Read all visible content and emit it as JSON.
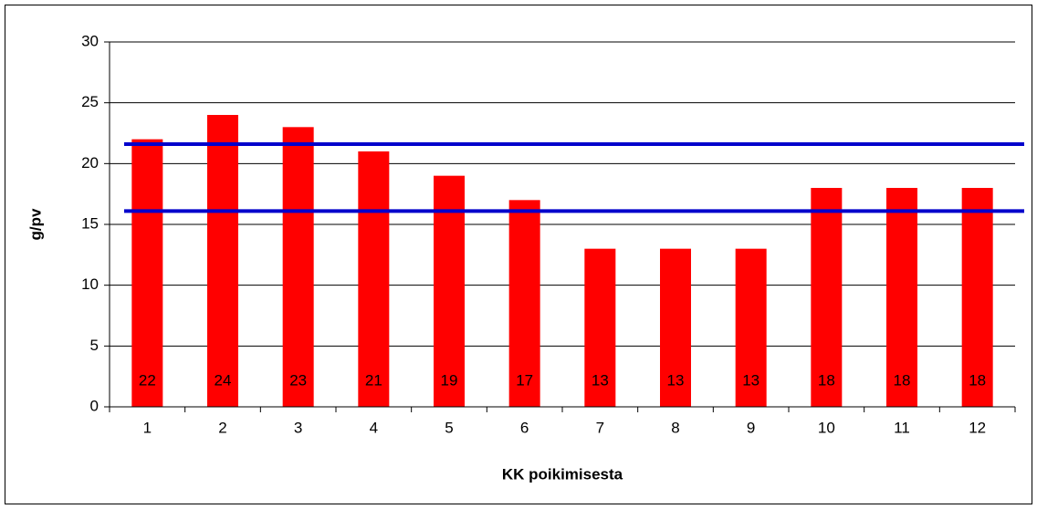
{
  "chart_data": {
    "type": "bar",
    "x_label": "KK poikimisesta",
    "y_label": "g/pv",
    "categories": [
      "1",
      "2",
      "3",
      "4",
      "5",
      "6",
      "7",
      "8",
      "9",
      "10",
      "11",
      "12"
    ],
    "values": [
      22,
      24,
      23,
      21,
      19,
      17,
      13,
      13,
      13,
      18,
      18,
      18
    ],
    "color": "#ff0000",
    "ylim": [
      0,
      30
    ],
    "yticks": [
      0,
      5,
      10,
      15,
      20,
      25,
      30
    ],
    "grid": true,
    "reference_lines": [
      {
        "value": 21.6,
        "color": "#0000cc"
      },
      {
        "value": 16.1,
        "color": "#0000cc"
      }
    ]
  }
}
